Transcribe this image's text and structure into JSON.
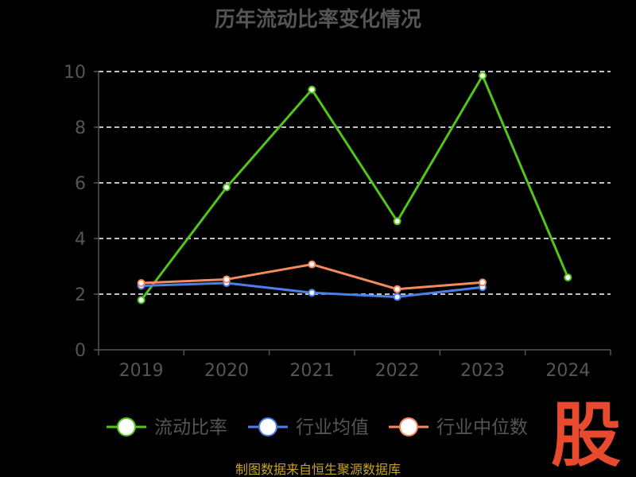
{
  "chart_data": {
    "type": "line",
    "title": "历年流动比率变化情况",
    "categories": [
      "2019",
      "2020",
      "2021",
      "2022",
      "2023",
      "2024"
    ],
    "ylim": [
      0,
      10
    ],
    "y_ticks": [
      "0",
      "2",
      "4",
      "6",
      "8",
      "10"
    ],
    "grid": true,
    "legend_placement": "bottom",
    "series": [
      {
        "name": "流动比率",
        "color": "#52c41a",
        "values": [
          1.79,
          5.84,
          9.35,
          4.62,
          9.85,
          2.6
        ]
      },
      {
        "name": "行业均值",
        "color": "#4a7fe8",
        "values": [
          2.3,
          2.4,
          2.05,
          1.9,
          2.25,
          null
        ]
      },
      {
        "name": "行业中位数",
        "color": "#f58a5c",
        "values": [
          2.4,
          2.53,
          3.07,
          2.18,
          2.42,
          null
        ]
      }
    ]
  },
  "colors": {
    "title": "#555555",
    "axis": "#555555",
    "tick_label": "#555555",
    "grid": "#ffffff",
    "legend_text": "#555555",
    "source": "#c9a227",
    "watermark": "#e84a2e"
  },
  "source_note": "制图数据来自恒生聚源数据库",
  "watermark": "股"
}
